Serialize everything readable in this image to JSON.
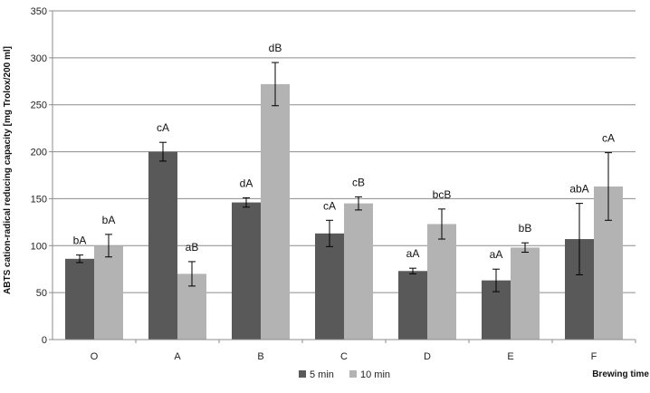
{
  "chart_data": {
    "type": "bar",
    "ylabel": "ABTS cation-radical reducing capacity [mg Trolox/200 ml]",
    "xlabel": "Brewing time",
    "ylim": [
      0,
      350
    ],
    "yticks": [
      0,
      50,
      100,
      150,
      200,
      250,
      300,
      350
    ],
    "grid": true,
    "legend_position": "bottom",
    "categories": [
      "O",
      "A",
      "B",
      "C",
      "D",
      "E",
      "F"
    ],
    "series": [
      {
        "name": "5 min",
        "color": "#595959",
        "values": [
          86,
          200,
          146,
          113,
          73,
          63,
          107
        ],
        "errors": [
          4,
          10,
          5,
          14,
          3,
          12,
          38
        ],
        "labels": [
          "bA",
          "cA",
          "dA",
          "cA",
          "aA",
          "aA",
          "abA"
        ]
      },
      {
        "name": "10 min",
        "color": "#b3b3b3",
        "values": [
          100,
          70,
          272,
          145,
          123,
          98,
          163
        ],
        "errors": [
          12,
          13,
          23,
          7,
          16,
          5,
          36
        ],
        "labels": [
          "bA",
          "aB",
          "dB",
          "cB",
          "bcB",
          "bB",
          "cA"
        ]
      }
    ]
  }
}
